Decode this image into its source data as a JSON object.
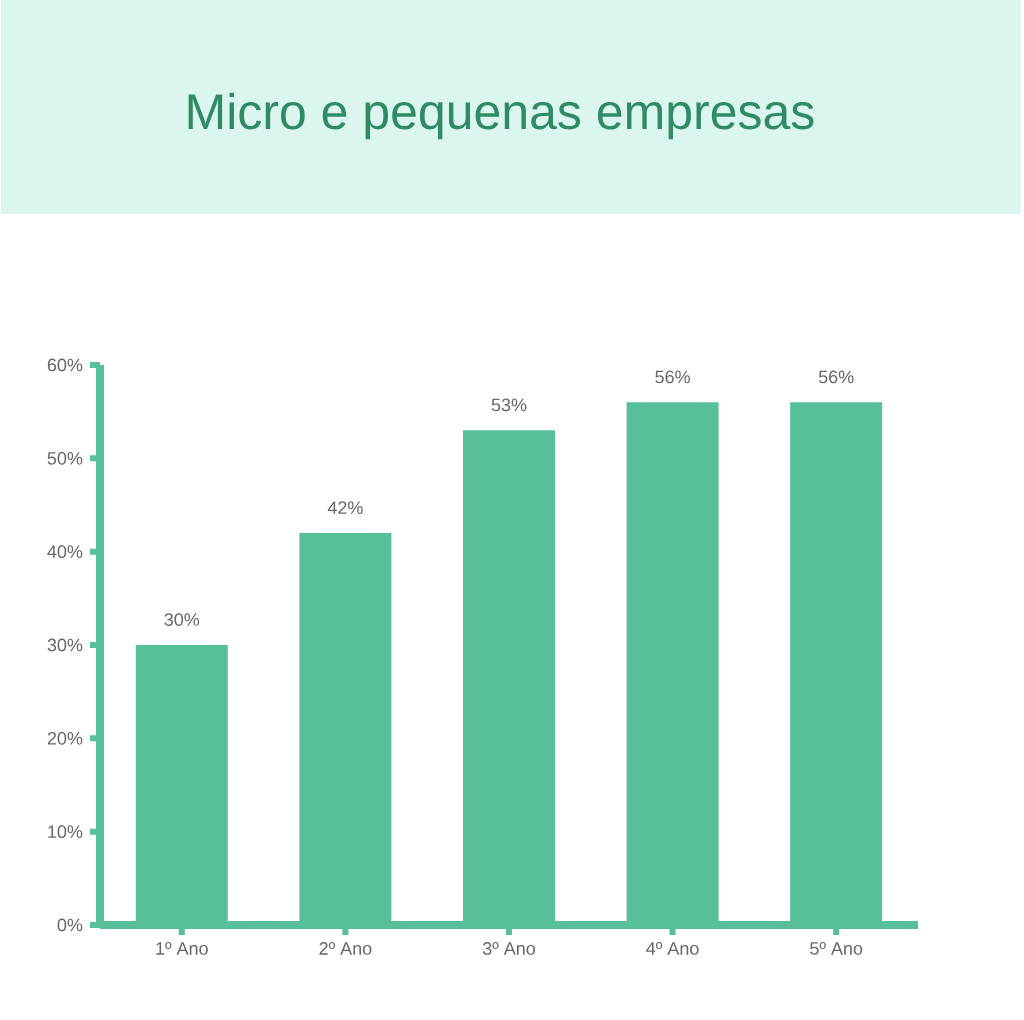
{
  "chart_data": {
    "type": "bar",
    "title": "Micro e pequenas empresas",
    "categories": [
      "1º Ano",
      "2º Ano",
      "3º Ano",
      "4º Ano",
      "5º Ano"
    ],
    "values": [
      30,
      42,
      53,
      56,
      56
    ],
    "value_labels": [
      "30%",
      "42%",
      "53%",
      "56%",
      "56%"
    ],
    "color": "#57c099",
    "ylim": [
      0,
      60
    ],
    "yticks": [
      {
        "value": 0,
        "label": "0%"
      },
      {
        "value": 10,
        "label": "10%"
      },
      {
        "value": 20,
        "label": "20%"
      },
      {
        "value": 30,
        "label": "30%"
      },
      {
        "value": 40,
        "label": "40%"
      },
      {
        "value": 50,
        "label": "50%"
      },
      {
        "value": 60,
        "label": "60%"
      }
    ]
  }
}
